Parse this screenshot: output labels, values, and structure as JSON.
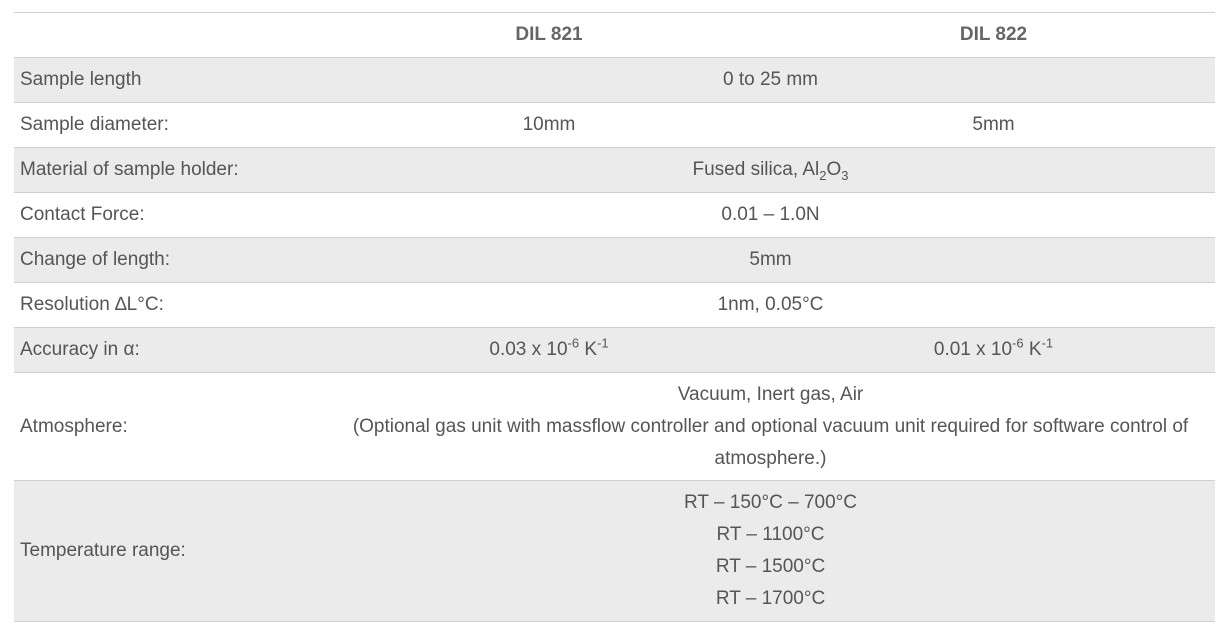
{
  "header": {
    "col1": "DIL 821",
    "col2": "DIL 822"
  },
  "rows": {
    "sample_length": {
      "label": "Sample length",
      "value": "0 to 25 mm"
    },
    "sample_diameter": {
      "label": "Sample diameter:",
      "v1": "10mm",
      "v2": "5mm"
    },
    "material": {
      "label": "Material of sample holder:",
      "value_pre": "Fused silica, Al",
      "sub1": "2",
      "value_mid": "O",
      "sub2": "3"
    },
    "contact_force": {
      "label": "Contact Force:",
      "value": "0.01 – 1.0N"
    },
    "change_length": {
      "label": "Change of length:",
      "value": "5mm"
    },
    "resolution": {
      "label": "Resolution ∆L°C:",
      "value": "1nm, 0.05°C"
    },
    "accuracy": {
      "label": "Accuracy in  α:",
      "v1_pre": "0.03 x 10",
      "v1_exp": "-6",
      "v1_unit": " K",
      "v1_unit_exp": "-1",
      "v2_pre": "0.01 x 10",
      "v2_exp": "-6",
      "v2_unit": " K",
      "v2_unit_exp": "-1"
    },
    "atmosphere": {
      "label": "Atmosphere:",
      "line1": "Vacuum, Inert gas, Air",
      "line2": "(Optional gas unit with massflow controller and optional vacuum unit required for software control of atmosphere.)"
    },
    "temperature": {
      "label": "Temperature range:",
      "lines": [
        "RT – 150°C – 700°C",
        "RT – 1100°C",
        "RT – 1500°C",
        "RT – 1700°C"
      ]
    }
  }
}
